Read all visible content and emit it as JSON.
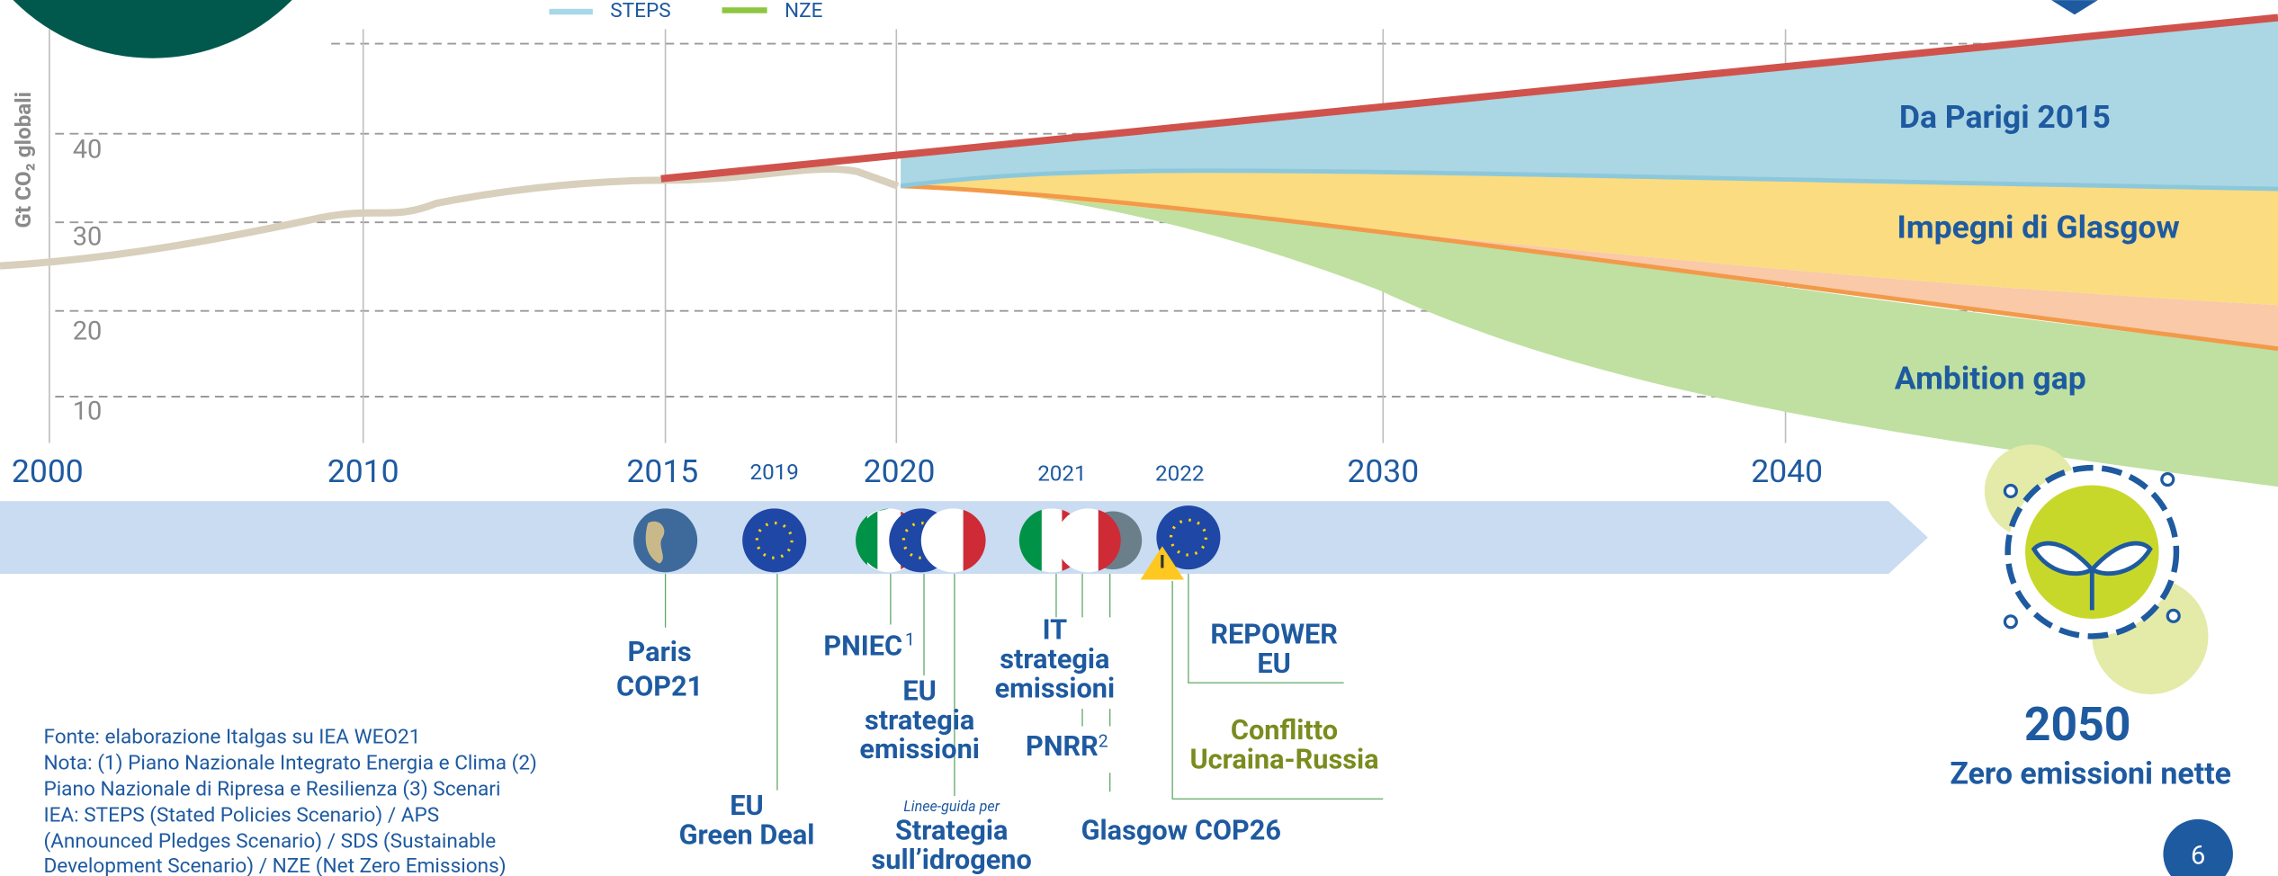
{
  "legend": [
    "STEPS",
    "NZE"
  ],
  "y_axis": {
    "label": "Gt CO₂ globali",
    "ticks": [
      "40",
      "30",
      "20",
      "10"
    ]
  },
  "x_axis": {
    "ticks": [
      "2000",
      "2010",
      "2015",
      "2020",
      "2030",
      "2040"
    ]
  },
  "areas": [
    "Da Parigi 2015",
    "Impegni di Glasgow",
    "Ambition gap"
  ],
  "timeline": {
    "years": [
      "2019",
      "2021",
      "2022"
    ],
    "events": [
      {
        "lines": [
          "Paris",
          "COP21"
        ]
      },
      {
        "lines": [
          "EU",
          "Green Deal"
        ]
      },
      {
        "lines": [
          "PNIEC"
        ],
        "note": "1"
      },
      {
        "lines": [
          "EU",
          "strategia",
          "emissioni"
        ]
      },
      {
        "prefix": "Linee-guida per",
        "lines": [
          "Strategia",
          "sull’idrogeno"
        ]
      },
      {
        "lines": [
          "IT",
          "strategia",
          "emissioni"
        ]
      },
      {
        "lines": [
          "PNRR"
        ],
        "note": "2"
      },
      {
        "lines": [
          "Glasgow COP26"
        ]
      },
      {
        "lines": [
          "REPOWER",
          "EU"
        ]
      },
      {
        "lines": [
          "Conflitto",
          "Ucraina-Russia"
        ]
      }
    ],
    "end": {
      "year": "2050",
      "label": "Zero emissioni nette"
    }
  },
  "notes": [
    "Fonte: elaborazione Italgas su IEA WEO21",
    "Nota: (1) Piano Nazionale Integrato Energia e Clima (2)",
    "Piano Nazionale di Ripresa e Resilienza (3) Scenari",
    "IEA: STEPS (Stated Policies Scenario) / APS",
    "(Announced Pledges Scenario) / SDS (Sustainable",
    "Development Scenario) / NZE (Net Zero Emissions)"
  ],
  "page_number": "6"
}
